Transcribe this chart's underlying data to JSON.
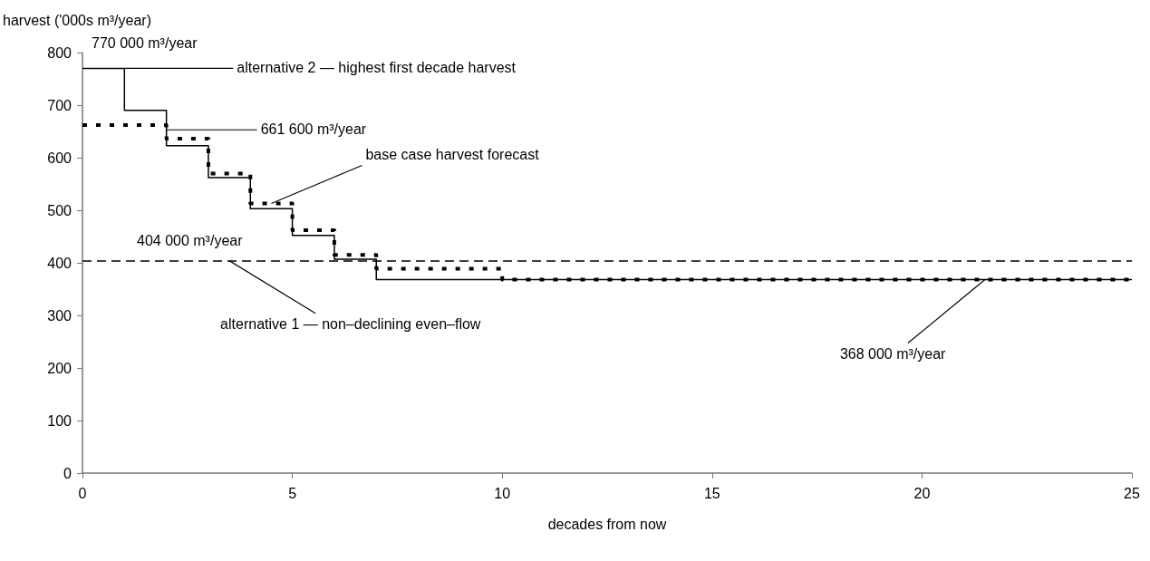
{
  "chart_data": {
    "type": "step",
    "xlabel": "decades from now",
    "ylabel": "harvest ('000s m³/year)",
    "series": [
      {
        "color": "#000000",
        "line_style": "solid",
        "x": [
          0,
          1,
          2,
          3,
          4,
          5,
          6,
          7,
          25
        ],
        "values": [
          770,
          690,
          623,
          562,
          503,
          452,
          407,
          368,
          368
        ]
      },
      {
        "color": "#000000",
        "line_style": "dotted",
        "x": [
          0,
          2,
          3,
          4,
          5,
          6,
          7,
          10,
          25
        ],
        "values": [
          662,
          636,
          570,
          513,
          462,
          415,
          389,
          368,
          368
        ]
      }
    ],
    "xlim": [
      0,
      25
    ],
    "xticks": [
      0,
      5,
      10,
      15,
      20,
      25
    ],
    "ylim": [
      0,
      800
    ],
    "yticks": [
      0,
      100,
      200,
      300,
      400,
      500,
      600,
      700,
      800
    ],
    "grid": false,
    "marker": "none",
    "ref_lines": [
      {
        "axis": "y",
        "value": 404,
        "label": "404 000 m³/year",
        "color": "#000000",
        "line_style": "dashed"
      }
    ],
    "annotations": [
      {
        "text": "770 000 m³/year",
        "x": 0,
        "y": 770
      },
      {
        "text": "alternative 2 — highest first decade harvest",
        "x": 1,
        "y": 770
      },
      {
        "text": "661 600 m³/year",
        "x": 2,
        "y": 653
      },
      {
        "text": "base case harvest forecast",
        "x": 4.5,
        "y": 513
      },
      {
        "text": "alternative 1 — non–declining even–flow",
        "x": 3.5,
        "y": 404
      },
      {
        "text": "368 000 m³/year",
        "x": 21.5,
        "y": 368
      }
    ]
  }
}
